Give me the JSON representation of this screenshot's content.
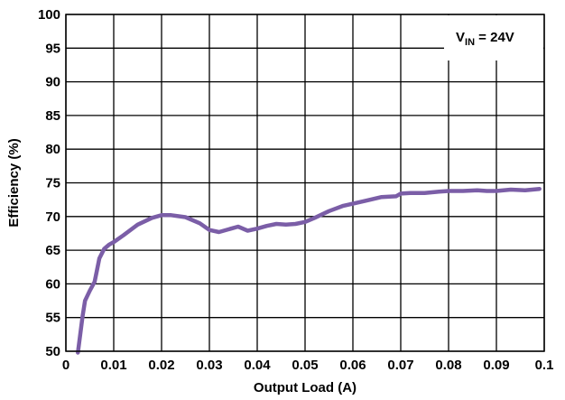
{
  "chart_data": {
    "type": "line",
    "xlabel": "Output Load (A)",
    "ylabel": "Efficiency (%)",
    "xlim": [
      0,
      0.1
    ],
    "ylim": [
      50,
      100
    ],
    "x_ticks": [
      "0",
      "0.01",
      "0.02",
      "0.03",
      "0.04",
      "0.05",
      "0.06",
      "0.07",
      "0.08",
      "0.09",
      "0.1"
    ],
    "y_ticks": [
      "50",
      "55",
      "60",
      "65",
      "70",
      "75",
      "80",
      "85",
      "90",
      "95",
      "100"
    ],
    "grid": true,
    "annotation": {
      "main": "V",
      "sub": "IN",
      "rest": " = 24V",
      "placement": "top-right"
    },
    "series": [
      {
        "color": "#7B5EA7",
        "x": [
          0.0025,
          0.003,
          0.0035,
          0.004,
          0.005,
          0.006,
          0.0065,
          0.007,
          0.0075,
          0.008,
          0.009,
          0.01,
          0.012,
          0.015,
          0.018,
          0.02,
          0.022,
          0.025,
          0.028,
          0.03,
          0.032,
          0.034,
          0.036,
          0.038,
          0.04,
          0.042,
          0.044,
          0.046,
          0.048,
          0.05,
          0.052,
          0.055,
          0.058,
          0.06,
          0.063,
          0.066,
          0.069,
          0.07,
          0.072,
          0.075,
          0.078,
          0.08,
          0.083,
          0.086,
          0.088,
          0.09,
          0.093,
          0.096,
          0.099
        ],
        "y": [
          49.8,
          52.5,
          55.2,
          57.5,
          59.0,
          60.3,
          62.0,
          63.8,
          64.5,
          65.2,
          65.8,
          66.2,
          67.2,
          68.8,
          69.8,
          70.2,
          70.2,
          69.9,
          69.0,
          68.0,
          67.7,
          68.1,
          68.5,
          67.9,
          68.2,
          68.6,
          68.9,
          68.8,
          68.9,
          69.2,
          69.8,
          70.8,
          71.6,
          71.9,
          72.4,
          72.9,
          73.0,
          73.4,
          73.5,
          73.5,
          73.7,
          73.8,
          73.8,
          73.9,
          73.8,
          73.8,
          74.0,
          73.9,
          74.1
        ]
      }
    ]
  }
}
